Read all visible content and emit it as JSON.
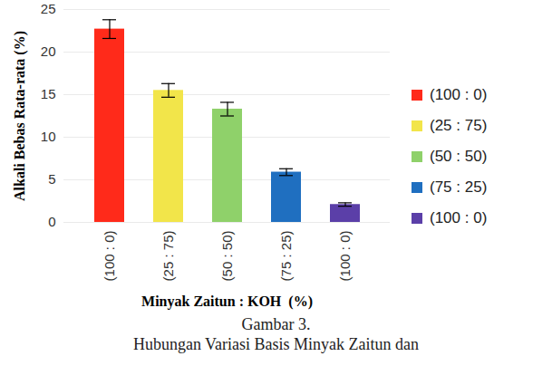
{
  "chart_data": {
    "type": "bar",
    "categories": [
      "(100 : 0)",
      "(25 : 75)",
      "(50 : 50)",
      "(75 : 25)",
      "(100 : 0)"
    ],
    "values": [
      22.7,
      15.5,
      13.3,
      5.9,
      2.1
    ],
    "errors": [
      1.1,
      0.8,
      0.8,
      0.4,
      0.2
    ],
    "colors": [
      "#ff2a1a",
      "#f2e54a",
      "#8fd16a",
      "#1f6fc0",
      "#5b3fa8"
    ],
    "ylim": [
      0,
      25
    ],
    "yticks": [
      0,
      5,
      10,
      15,
      20,
      25
    ],
    "grid": true,
    "legend": "right",
    "y_label": "Alkali Bebas Rata-rata (%)",
    "x_label": "Minyak Zaitun : KOH  (%)",
    "caption": [
      "Gambar 3.",
      "Hubungan Variasi Basis Minyak Zaitun dan"
    ]
  }
}
